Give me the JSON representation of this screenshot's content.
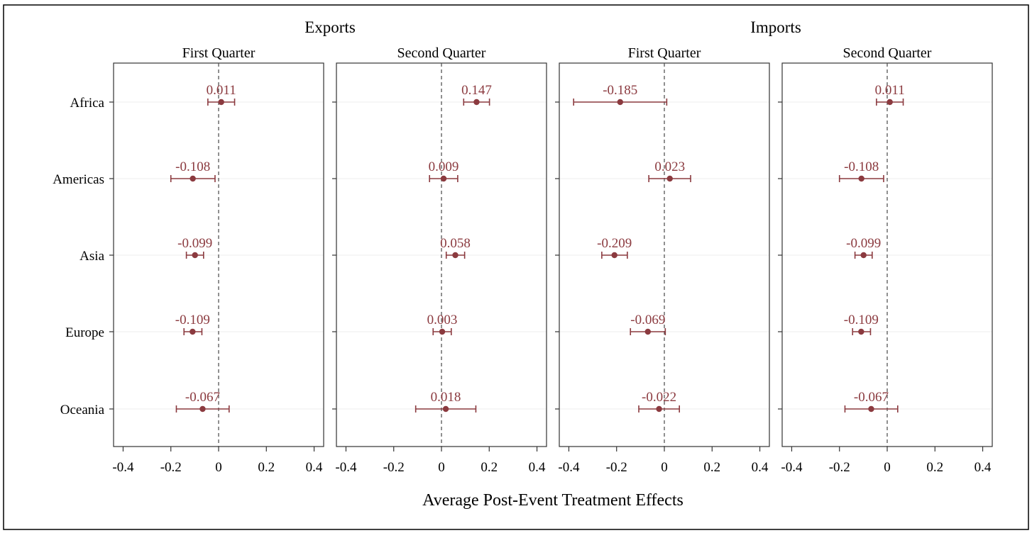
{
  "chart_data": {
    "type": "coefficient-plot",
    "xlabel": "Average Post-Event Treatment Effects",
    "groups": [
      "Exports",
      "Imports"
    ],
    "categories": [
      "Africa",
      "Americas",
      "Asia",
      "Europe",
      "Oceania"
    ],
    "xlim": [
      -0.44,
      0.44
    ],
    "xticks": [
      -0.4,
      -0.2,
      0,
      0.2,
      0.4
    ],
    "xtick_labels": [
      "-0.4",
      "-0.2",
      "0",
      "0.2",
      "0.4"
    ],
    "reference_line": 0,
    "colors": {
      "marker": "#8b3a3f",
      "label": "#8b3a3f",
      "axis": "#333333",
      "reference": "#555555",
      "grid": "#eeeeee"
    },
    "panels": [
      {
        "group": "Exports",
        "title": "First Quarter",
        "estimates": [
          {
            "region": "Africa",
            "value": 0.011,
            "label": "0.011",
            "ci": [
              -0.045,
              0.067
            ]
          },
          {
            "region": "Americas",
            "value": -0.108,
            "label": "-0.108",
            "ci": [
              -0.2,
              -0.015
            ]
          },
          {
            "region": "Asia",
            "value": -0.099,
            "label": "-0.099",
            "ci": [
              -0.135,
              -0.063
            ]
          },
          {
            "region": "Europe",
            "value": -0.109,
            "label": "-0.109",
            "ci": [
              -0.145,
              -0.07
            ]
          },
          {
            "region": "Oceania",
            "value": -0.067,
            "label": "-0.067",
            "ci": [
              -0.177,
              0.044
            ]
          }
        ]
      },
      {
        "group": "Exports",
        "title": "Second Quarter",
        "estimates": [
          {
            "region": "Africa",
            "value": 0.147,
            "label": "0.147",
            "ci": [
              0.093,
              0.201
            ]
          },
          {
            "region": "Americas",
            "value": 0.009,
            "label": "0.009",
            "ci": [
              -0.05,
              0.068
            ]
          },
          {
            "region": "Asia",
            "value": 0.058,
            "label": "0.058",
            "ci": [
              0.02,
              0.097
            ]
          },
          {
            "region": "Europe",
            "value": 0.003,
            "label": "0.003",
            "ci": [
              -0.035,
              0.041
            ]
          },
          {
            "region": "Oceania",
            "value": 0.018,
            "label": "0.018",
            "ci": [
              -0.108,
              0.144
            ]
          }
        ]
      },
      {
        "group": "Imports",
        "title": "First Quarter",
        "estimates": [
          {
            "region": "Africa",
            "value": -0.185,
            "label": "-0.185",
            "ci": [
              -0.38,
              0.01
            ]
          },
          {
            "region": "Americas",
            "value": 0.023,
            "label": "0.023",
            "ci": [
              -0.065,
              0.11
            ]
          },
          {
            "region": "Asia",
            "value": -0.209,
            "label": "-0.209",
            "ci": [
              -0.262,
              -0.155
            ]
          },
          {
            "region": "Europe",
            "value": -0.069,
            "label": "-0.069",
            "ci": [
              -0.142,
              0.004
            ]
          },
          {
            "region": "Oceania",
            "value": -0.022,
            "label": "-0.022",
            "ci": [
              -0.107,
              0.063
            ]
          }
        ]
      },
      {
        "group": "Imports",
        "title": "Second Quarter",
        "estimates": [
          {
            "region": "Africa",
            "value": 0.011,
            "label": "0.011",
            "ci": [
              -0.045,
              0.067
            ]
          },
          {
            "region": "Americas",
            "value": -0.108,
            "label": "-0.108",
            "ci": [
              -0.2,
              -0.015
            ]
          },
          {
            "region": "Asia",
            "value": -0.099,
            "label": "-0.099",
            "ci": [
              -0.135,
              -0.063
            ]
          },
          {
            "region": "Europe",
            "value": -0.109,
            "label": "-0.109",
            "ci": [
              -0.145,
              -0.07
            ]
          },
          {
            "region": "Oceania",
            "value": -0.067,
            "label": "-0.067",
            "ci": [
              -0.177,
              0.044
            ]
          }
        ]
      }
    ]
  }
}
